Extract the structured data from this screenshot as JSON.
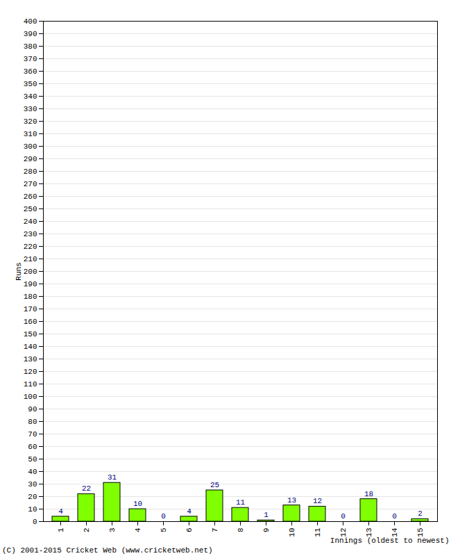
{
  "chart_data": {
    "type": "bar",
    "caption": "(C) 2001-2015 Cricket Web (www.cricketweb.net)",
    "x_label": "Innings (oldest to newest)",
    "y_label": "Runs",
    "categories": [
      "1",
      "2",
      "3",
      "4",
      "5",
      "6",
      "7",
      "8",
      "9",
      "10",
      "11",
      "12",
      "13",
      "14",
      "15"
    ],
    "values": [
      4,
      22,
      31,
      10,
      0,
      4,
      25,
      11,
      1,
      13,
      12,
      0,
      18,
      0,
      2
    ],
    "color": "#80ff00",
    "ylim": [
      0,
      400
    ],
    "yticks": [
      0,
      10,
      20,
      30,
      40,
      50,
      60,
      70,
      80,
      90,
      100,
      110,
      120,
      130,
      140,
      150,
      160,
      170,
      180,
      190,
      200,
      210,
      220,
      230,
      240,
      250,
      260,
      270,
      280,
      290,
      300,
      310,
      320,
      330,
      340,
      350,
      360,
      370,
      380,
      390,
      400
    ],
    "grid": true,
    "data_labels": true
  }
}
